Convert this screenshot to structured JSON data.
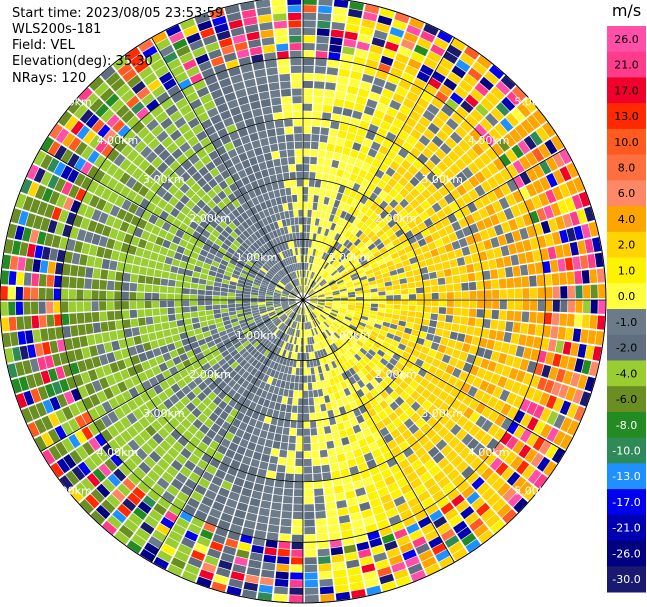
{
  "header": {
    "start_time": "Start time: 2023/08/05 23:53:59",
    "instrument": "WLS200s-181",
    "field": "Field: VEL",
    "elevation": "Elevation(deg): 35.30",
    "nrays": "NRays: 120"
  },
  "chart_data": {
    "type": "heatmap",
    "projection": "polar PPI",
    "field": "VEL",
    "units": "m/s",
    "n_rays": 120,
    "elevation_deg": 35.3,
    "range_rings_km": [
      1.0,
      2.0,
      3.0,
      4.0,
      5.0
    ],
    "ring_labels": [
      "1.00km",
      "2.00km",
      "3.00km",
      "4.00km",
      "5.00km"
    ],
    "max_range_km": 5.8,
    "pattern": {
      "approaching_sector_deg": [
        185,
        355
      ],
      "receding_sector_deg": [
        5,
        175
      ],
      "description": "Negative (green) radial velocities on the west half, positive (yellow/orange) on the east half, noisy multicolored outer ranges"
    },
    "colorbar": {
      "unit_label": "m/s",
      "ticks": [
        "26.0",
        "21.0",
        "17.0",
        "13.0",
        "10.0",
        "8.0",
        "6.0",
        "4.0",
        "2.0",
        "1.0",
        "0.0",
        "-1.0",
        "-2.0",
        "-4.0",
        "-6.0",
        "-8.0",
        "-10.0",
        "-13.0",
        "-17.0",
        "-21.0",
        "-26.0",
        "-30.0"
      ],
      "bins": [
        {
          "low": 26,
          "high": 30,
          "color": "#ff4fa8"
        },
        {
          "low": 21,
          "high": 26,
          "color": "#ff3b8b"
        },
        {
          "low": 17,
          "high": 21,
          "color": "#f0002a"
        },
        {
          "low": 13,
          "high": 17,
          "color": "#ff2a00"
        },
        {
          "low": 10,
          "high": 13,
          "color": "#ff5a20"
        },
        {
          "low": 8,
          "high": 10,
          "color": "#ff6f40"
        },
        {
          "low": 6,
          "high": 8,
          "color": "#ff8866"
        },
        {
          "low": 4,
          "high": 6,
          "color": "#ffa500"
        },
        {
          "low": 2,
          "high": 4,
          "color": "#ffd400"
        },
        {
          "low": 1,
          "high": 2,
          "color": "#fff200"
        },
        {
          "low": 0,
          "high": 1,
          "color": "#ffff40"
        },
        {
          "low": -1,
          "high": 0,
          "color": "#6b7b8a"
        },
        {
          "low": -2,
          "high": -1,
          "color": "#5f6f80"
        },
        {
          "low": -4,
          "high": -2,
          "color": "#9acd32"
        },
        {
          "low": -6,
          "high": -4,
          "color": "#6b8e23"
        },
        {
          "low": -8,
          "high": -6,
          "color": "#228b22"
        },
        {
          "low": -10,
          "high": -8,
          "color": "#2e8b57"
        },
        {
          "low": -13,
          "high": -10,
          "color": "#1e90ff"
        },
        {
          "low": -17,
          "high": -13,
          "color": "#0000ee"
        },
        {
          "low": -21,
          "high": -17,
          "color": "#0000b0"
        },
        {
          "low": -26,
          "high": -21,
          "color": "#000080"
        },
        {
          "low": -30,
          "high": -26,
          "color": "#191970"
        }
      ]
    }
  }
}
